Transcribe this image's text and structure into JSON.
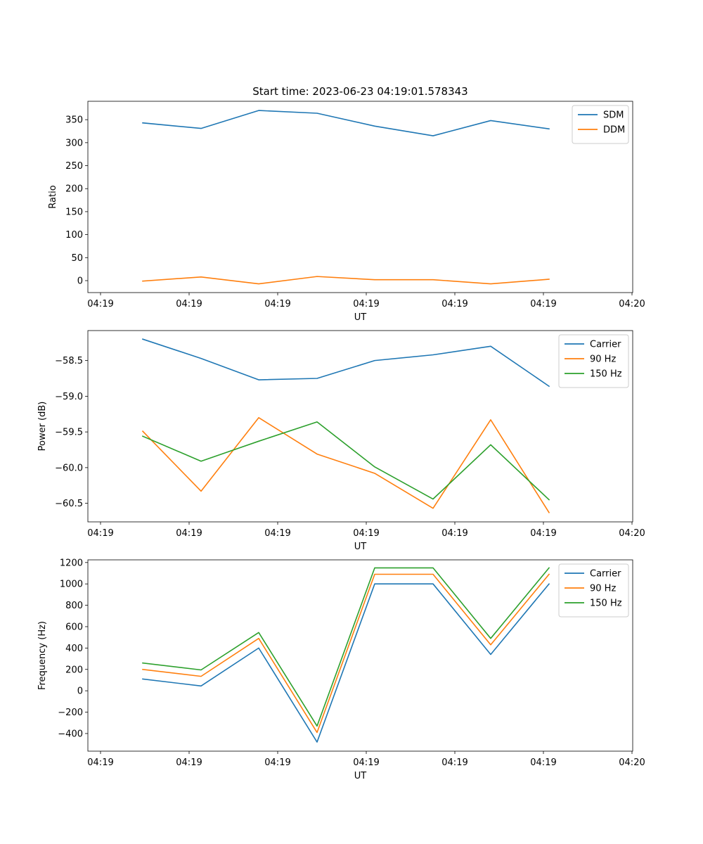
{
  "chart_data": [
    {
      "type": "line",
      "title": "Start time: 2023-06-23 04:19:01.578343",
      "xlabel": "UT",
      "ylabel": "Ratio",
      "x_ticks": [
        "04:19",
        "04:19",
        "04:19",
        "04:19",
        "04:19",
        "04:19",
        "04:20"
      ],
      "y_ticks": [
        "0",
        "50",
        "100",
        "150",
        "200",
        "250",
        "300",
        "350"
      ],
      "ylim": [
        -26,
        390
      ],
      "legend_position": "top-right",
      "series": [
        {
          "name": "SDM",
          "color": "#1f77b4",
          "values": [
            343,
            331,
            370,
            364,
            336,
            315,
            348,
            330
          ]
        },
        {
          "name": "DDM",
          "color": "#ff7f0e",
          "values": [
            -1,
            8,
            -7,
            9,
            2,
            2,
            -7,
            3
          ]
        }
      ]
    },
    {
      "type": "line",
      "title": "",
      "xlabel": "UT",
      "ylabel": "Power (dB)",
      "x_ticks": [
        "04:19",
        "04:19",
        "04:19",
        "04:19",
        "04:19",
        "04:19",
        "04:20"
      ],
      "y_ticks": [
        "−58.5",
        "−59.0",
        "−59.5",
        "−60.0",
        "−60.5"
      ],
      "ylim": [
        -60.76,
        -58.08
      ],
      "legend_position": "top-right",
      "series": [
        {
          "name": "Carrier",
          "color": "#1f77b4",
          "values": [
            -58.2,
            -58.47,
            -58.77,
            -58.75,
            -58.5,
            -58.42,
            -58.3,
            -58.86
          ]
        },
        {
          "name": "90 Hz",
          "color": "#ff7f0e",
          "values": [
            -59.49,
            -60.33,
            -59.3,
            -59.81,
            -60.08,
            -60.57,
            -59.33,
            -60.63
          ]
        },
        {
          "name": "150 Hz",
          "color": "#2ca02c",
          "values": [
            -59.56,
            -59.91,
            -59.63,
            -59.36,
            -59.99,
            -60.44,
            -59.68,
            -60.45
          ]
        }
      ]
    },
    {
      "type": "line",
      "title": "",
      "xlabel": "UT",
      "ylabel": "Frequency (Hz)",
      "x_ticks": [
        "04:19",
        "04:19",
        "04:19",
        "04:19",
        "04:19",
        "04:19",
        "04:20"
      ],
      "y_ticks": [
        "−400",
        "−200",
        "0",
        "200",
        "400",
        "600",
        "800",
        "1000",
        "1200"
      ],
      "ylim": [
        -565,
        1225
      ],
      "legend_position": "top-right",
      "series": [
        {
          "name": "Carrier",
          "color": "#1f77b4",
          "values": [
            110,
            45,
            400,
            -480,
            1000,
            1000,
            340,
            1000
          ]
        },
        {
          "name": "90 Hz",
          "color": "#ff7f0e",
          "values": [
            200,
            135,
            490,
            -390,
            1090,
            1090,
            430,
            1090
          ]
        },
        {
          "name": "150 Hz",
          "color": "#2ca02c",
          "values": [
            260,
            195,
            545,
            -330,
            1150,
            1150,
            490,
            1150
          ]
        }
      ]
    }
  ]
}
